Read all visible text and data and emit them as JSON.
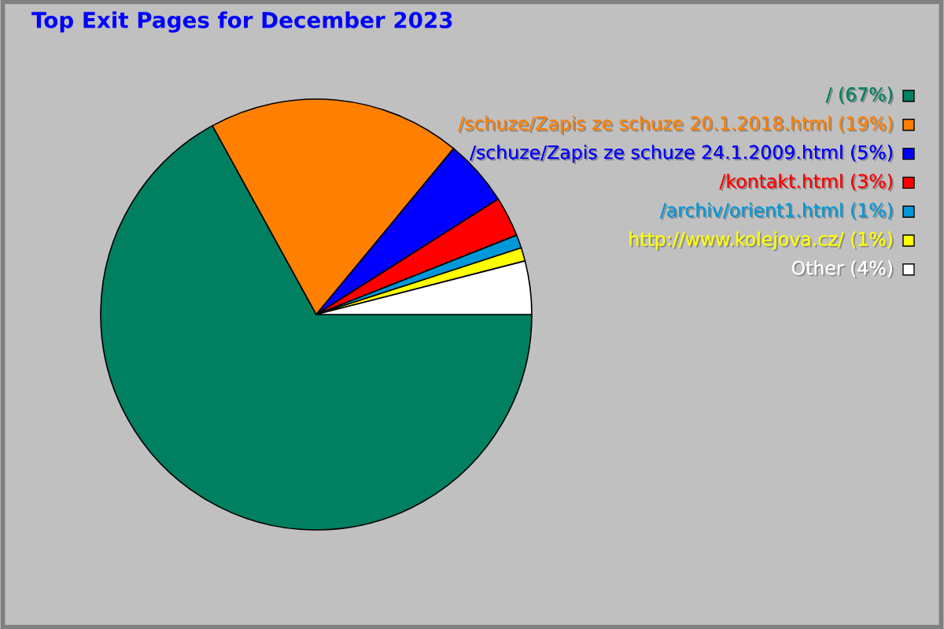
{
  "chart_data": {
    "type": "pie",
    "title": "Top Exit Pages for December 2023",
    "categories": [
      "/",
      "/schuze/Zapis ze schuze 20.1.2018.html",
      "/schuze/Zapis ze schuze 24.1.2009.html",
      "/kontakt.html",
      "/archiv/orient1.html",
      "http://www.kolejova.cz/",
      "Other"
    ],
    "values": [
      67,
      19,
      5,
      3,
      1,
      1,
      4
    ],
    "value_labels": [
      "(67%)",
      "(19%)",
      "(5%)",
      "(3%)",
      "(1%)",
      "(1%)",
      "(4%)"
    ],
    "legend": "top right",
    "colors": [
      "#008060",
      "#ff8000",
      "#0000ff",
      "#ff0000",
      "#0098d8",
      "#ffff00",
      "#ffffff"
    ]
  }
}
